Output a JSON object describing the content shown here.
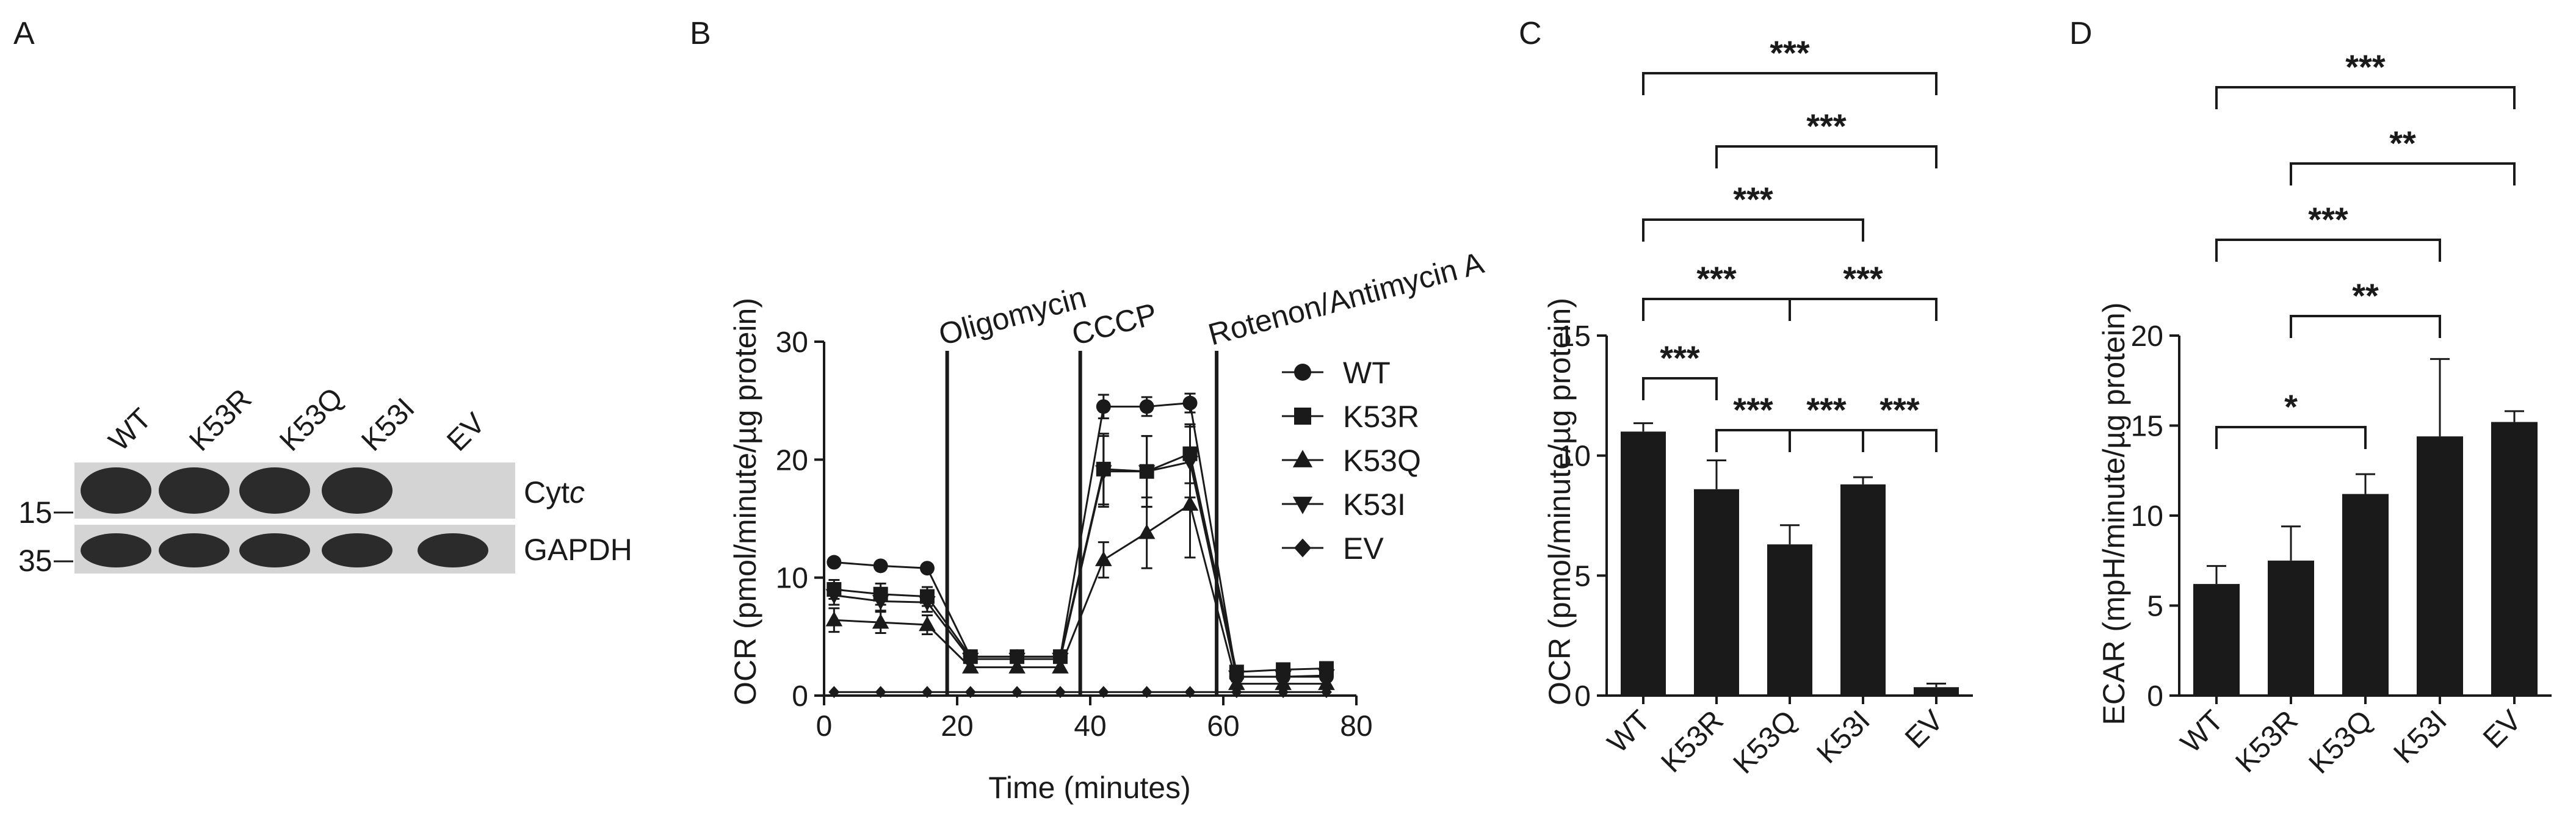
{
  "colors": {
    "ink": "#1a1a1a",
    "bar": "#1a1a1a",
    "band": "#2b2b2b",
    "membrane": "#d4d4d4"
  },
  "panels": [
    "A",
    "B",
    "C",
    "D"
  ],
  "blot": {
    "lanes": [
      "WT",
      "K53R",
      "K53Q",
      "K53I",
      "EV"
    ],
    "markers": [
      "15",
      "35"
    ],
    "rows": [
      {
        "label_main": "Cyt",
        "label_italic": "c",
        "present": [
          true,
          true,
          true,
          true,
          false
        ]
      },
      {
        "label_main": "GAPDH",
        "label_italic": "",
        "present": [
          true,
          true,
          true,
          true,
          true
        ]
      }
    ]
  },
  "chart_data": [
    {
      "panel": "B",
      "type": "line",
      "xlabel": "Time (minutes)",
      "ylabel": "OCR (pmol/minute/µg protein)",
      "xlim": [
        0,
        80
      ],
      "ylim": [
        0,
        30
      ],
      "xticks": [
        0,
        20,
        40,
        60,
        80
      ],
      "yticks": [
        0,
        10,
        20,
        30
      ],
      "x": [
        1.5,
        8.5,
        15.5,
        22,
        29,
        35.5,
        42,
        48.5,
        55,
        62,
        69,
        75.5
      ],
      "injections": [
        {
          "label": "Oligomycin",
          "x": 18.5
        },
        {
          "label": "CCCP",
          "x": 38.5
        },
        {
          "label": "Rotenon/Antimycin A",
          "x": 59
        }
      ],
      "series": [
        {
          "name": "WT",
          "marker": "circle",
          "values": [
            11.3,
            11.0,
            10.8,
            3.3,
            3.3,
            3.3,
            24.5,
            24.5,
            24.8,
            1.6,
            1.6,
            1.6
          ],
          "err": [
            0.3,
            0.3,
            0.3,
            0.3,
            0.3,
            0.3,
            1.0,
            0.8,
            0.8,
            0.3,
            0.3,
            0.3
          ]
        },
        {
          "name": "K53R",
          "marker": "square",
          "values": [
            9.0,
            8.6,
            8.4,
            3.3,
            3.3,
            3.3,
            19.2,
            19.0,
            20.5,
            2.0,
            2.2,
            2.3
          ],
          "err": [
            0.8,
            0.9,
            0.8,
            0.3,
            0.3,
            0.3,
            3.0,
            3.0,
            2.5,
            0.5,
            0.5,
            0.5
          ]
        },
        {
          "name": "K53Q",
          "marker": "triangle-up",
          "values": [
            6.4,
            6.2,
            6.0,
            2.4,
            2.4,
            2.4,
            11.5,
            13.8,
            16.2,
            1.0,
            1.0,
            1.0
          ],
          "err": [
            1.0,
            0.9,
            0.8,
            0.4,
            0.4,
            0.4,
            1.5,
            3.0,
            4.5,
            0.4,
            0.4,
            0.4
          ]
        },
        {
          "name": "K53I",
          "marker": "triangle-down",
          "values": [
            8.5,
            8.0,
            7.9,
            3.1,
            3.1,
            3.1,
            19.0,
            19.0,
            19.8,
            1.6,
            1.6,
            1.7
          ],
          "err": [
            0.8,
            0.8,
            0.8,
            0.3,
            0.3,
            0.3,
            3.0,
            3.0,
            3.0,
            0.4,
            0.4,
            0.4
          ]
        },
        {
          "name": "EV",
          "marker": "diamond",
          "values": [
            0.3,
            0.3,
            0.3,
            0.3,
            0.3,
            0.3,
            0.3,
            0.3,
            0.3,
            0.3,
            0.3,
            0.3
          ],
          "err": [
            0,
            0,
            0,
            0,
            0,
            0,
            0,
            0,
            0,
            0,
            0,
            0
          ]
        }
      ],
      "legend_position": "right"
    },
    {
      "panel": "C",
      "type": "bar",
      "ylabel": "OCR (pmol/minute/µg protein)",
      "categories": [
        "WT",
        "K53R",
        "K53Q",
        "K53I",
        "EV"
      ],
      "values": [
        11.0,
        8.6,
        6.3,
        8.8,
        0.35
      ],
      "err": [
        0.35,
        1.2,
        0.8,
        0.3,
        0.15
      ],
      "ylim": [
        0,
        15
      ],
      "yticks": [
        0,
        5,
        10,
        15
      ],
      "significance": [
        {
          "a": 0,
          "b": 4,
          "label": "***"
        },
        {
          "a": 1,
          "b": 4,
          "label": "***"
        },
        {
          "a": 0,
          "b": 3,
          "label": "***"
        },
        {
          "a": 0,
          "b": 2,
          "label": "***"
        },
        {
          "a": 2,
          "b": 4,
          "label": "***"
        },
        {
          "a": 0,
          "b": 1,
          "label": "***"
        },
        {
          "a": 1,
          "b": 2,
          "label": "***"
        },
        {
          "a": 2,
          "b": 3,
          "label": "***"
        },
        {
          "a": 3,
          "b": 4,
          "label": "***"
        }
      ]
    },
    {
      "panel": "D",
      "type": "bar",
      "ylabel": "ECAR (mpH/minute/µg protein)",
      "categories": [
        "WT",
        "K53R",
        "K53Q",
        "K53I",
        "EV"
      ],
      "values": [
        6.2,
        7.5,
        11.2,
        14.4,
        15.2
      ],
      "err": [
        1.0,
        1.9,
        1.1,
        4.3,
        0.6
      ],
      "ylim": [
        0,
        20
      ],
      "yticks": [
        0,
        5,
        10,
        15,
        20
      ],
      "significance": [
        {
          "a": 0,
          "b": 4,
          "label": "***"
        },
        {
          "a": 1,
          "b": 4,
          "label": "**"
        },
        {
          "a": 0,
          "b": 3,
          "label": "***"
        },
        {
          "a": 1,
          "b": 3,
          "label": "**"
        },
        {
          "a": 0,
          "b": 2,
          "label": "*"
        }
      ]
    }
  ]
}
